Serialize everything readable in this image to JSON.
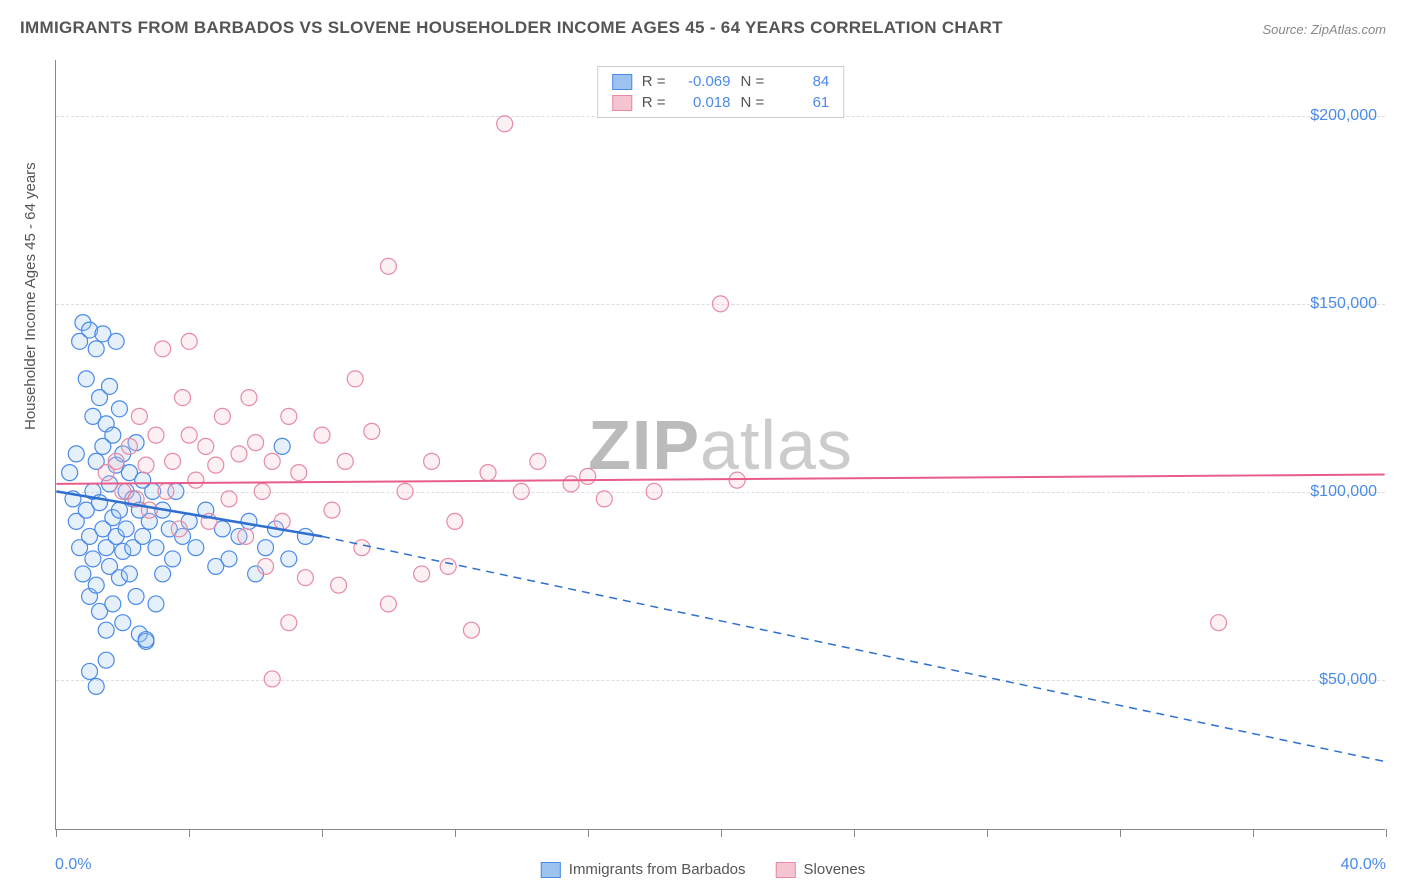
{
  "title": "IMMIGRANTS FROM BARBADOS VS SLOVENE HOUSEHOLDER INCOME AGES 45 - 64 YEARS CORRELATION CHART",
  "source": "Source: ZipAtlas.com",
  "ylabel": "Householder Income Ages 45 - 64 years",
  "watermark_bold": "ZIP",
  "watermark_rest": "atlas",
  "chart": {
    "type": "scatter",
    "background_color": "#ffffff",
    "grid_color": "#dddddd",
    "axis_color": "#888888",
    "label_color": "#555555",
    "tick_label_color": "#4a8ae8",
    "label_fontsize": 15,
    "tick_fontsize": 16,
    "title_fontsize": 17,
    "xlim": [
      0,
      40
    ],
    "ylim": [
      10000,
      215000
    ],
    "x_tick_positions": [
      0,
      4,
      8,
      12,
      16,
      20,
      24,
      28,
      32,
      36,
      40
    ],
    "x_min_label": "0.0%",
    "x_max_label": "40.0%",
    "y_grid": [
      {
        "value": 50000,
        "label": "$50,000"
      },
      {
        "value": 100000,
        "label": "$100,000"
      },
      {
        "value": 150000,
        "label": "$150,000"
      },
      {
        "value": 200000,
        "label": "$200,000"
      }
    ],
    "marker_radius": 8,
    "series": [
      {
        "name": "Immigrants from Barbados",
        "fill": "#9cc3ef",
        "stroke": "#4a8ae8",
        "r_value": "-0.069",
        "n_value": "84",
        "trend": {
          "solid_from": [
            0,
            100000
          ],
          "solid_to": [
            8,
            88000
          ],
          "dashed_to": [
            40,
            28000
          ],
          "color": "#2e6fd1",
          "width": 2.5
        },
        "points": [
          [
            0.4,
            105000
          ],
          [
            0.5,
            98000
          ],
          [
            0.6,
            110000
          ],
          [
            0.6,
            92000
          ],
          [
            0.7,
            140000
          ],
          [
            0.7,
            85000
          ],
          [
            0.8,
            145000
          ],
          [
            0.8,
            78000
          ],
          [
            0.9,
            130000
          ],
          [
            0.9,
            95000
          ],
          [
            1.0,
            143000
          ],
          [
            1.0,
            88000
          ],
          [
            1.0,
            72000
          ],
          [
            1.1,
            120000
          ],
          [
            1.1,
            100000
          ],
          [
            1.1,
            82000
          ],
          [
            1.2,
            138000
          ],
          [
            1.2,
            108000
          ],
          [
            1.2,
            75000
          ],
          [
            1.3,
            125000
          ],
          [
            1.3,
            97000
          ],
          [
            1.3,
            68000
          ],
          [
            1.4,
            142000
          ],
          [
            1.4,
            112000
          ],
          [
            1.4,
            90000
          ],
          [
            1.5,
            118000
          ],
          [
            1.5,
            85000
          ],
          [
            1.5,
            63000
          ],
          [
            1.6,
            128000
          ],
          [
            1.6,
            102000
          ],
          [
            1.6,
            80000
          ],
          [
            1.7,
            115000
          ],
          [
            1.7,
            93000
          ],
          [
            1.7,
            70000
          ],
          [
            1.8,
            107000
          ],
          [
            1.8,
            88000
          ],
          [
            1.9,
            122000
          ],
          [
            1.9,
            95000
          ],
          [
            1.9,
            77000
          ],
          [
            2.0,
            110000
          ],
          [
            2.0,
            84000
          ],
          [
            2.0,
            65000
          ],
          [
            2.1,
            100000
          ],
          [
            2.1,
            90000
          ],
          [
            2.2,
            105000
          ],
          [
            2.2,
            78000
          ],
          [
            2.3,
            98000
          ],
          [
            2.3,
            85000
          ],
          [
            2.4,
            113000
          ],
          [
            2.4,
            72000
          ],
          [
            2.5,
            95000
          ],
          [
            2.5,
            62000
          ],
          [
            2.6,
            103000
          ],
          [
            2.6,
            88000
          ],
          [
            2.7,
            60000
          ],
          [
            2.7,
            60500
          ],
          [
            2.8,
            92000
          ],
          [
            2.9,
            100000
          ],
          [
            3.0,
            85000
          ],
          [
            3.0,
            70000
          ],
          [
            3.2,
            95000
          ],
          [
            3.2,
            78000
          ],
          [
            3.4,
            90000
          ],
          [
            3.5,
            82000
          ],
          [
            3.6,
            100000
          ],
          [
            3.8,
            88000
          ],
          [
            4.0,
            92000
          ],
          [
            4.2,
            85000
          ],
          [
            4.5,
            95000
          ],
          [
            4.8,
            80000
          ],
          [
            5.0,
            90000
          ],
          [
            5.2,
            82000
          ],
          [
            5.5,
            88000
          ],
          [
            5.8,
            92000
          ],
          [
            6.0,
            78000
          ],
          [
            6.3,
            85000
          ],
          [
            6.6,
            90000
          ],
          [
            6.8,
            112000
          ],
          [
            7.0,
            82000
          ],
          [
            7.5,
            88000
          ],
          [
            1.0,
            52000
          ],
          [
            1.2,
            48000
          ],
          [
            1.5,
            55000
          ],
          [
            1.8,
            140000
          ]
        ]
      },
      {
        "name": "Slovenes",
        "fill": "#f5c4d1",
        "stroke": "#e88aa5",
        "r_value": "0.018",
        "n_value": "61",
        "trend": {
          "solid_from": [
            0,
            102000
          ],
          "solid_to": [
            40,
            104500
          ],
          "dashed_to": null,
          "color": "#e85d8a",
          "width": 2
        },
        "points": [
          [
            1.5,
            105000
          ],
          [
            1.8,
            108000
          ],
          [
            2.0,
            100000
          ],
          [
            2.2,
            112000
          ],
          [
            2.4,
            98000
          ],
          [
            2.5,
            120000
          ],
          [
            2.7,
            107000
          ],
          [
            2.8,
            95000
          ],
          [
            3.0,
            115000
          ],
          [
            3.2,
            138000
          ],
          [
            3.3,
            100000
          ],
          [
            3.5,
            108000
          ],
          [
            3.7,
            90000
          ],
          [
            3.8,
            125000
          ],
          [
            4.0,
            115000
          ],
          [
            4.2,
            103000
          ],
          [
            4.5,
            112000
          ],
          [
            4.6,
            92000
          ],
          [
            4.8,
            107000
          ],
          [
            5.0,
            120000
          ],
          [
            5.2,
            98000
          ],
          [
            5.5,
            110000
          ],
          [
            5.7,
            88000
          ],
          [
            5.8,
            125000
          ],
          [
            6.0,
            113000
          ],
          [
            6.2,
            100000
          ],
          [
            6.3,
            80000
          ],
          [
            6.5,
            108000
          ],
          [
            6.8,
            92000
          ],
          [
            7.0,
            120000
          ],
          [
            7.3,
            105000
          ],
          [
            7.5,
            77000
          ],
          [
            8.0,
            115000
          ],
          [
            8.3,
            95000
          ],
          [
            8.7,
            108000
          ],
          [
            9.0,
            130000
          ],
          [
            9.2,
            85000
          ],
          [
            9.5,
            116000
          ],
          [
            10.0,
            160000
          ],
          [
            10.0,
            70000
          ],
          [
            10.5,
            100000
          ],
          [
            11.0,
            78000
          ],
          [
            11.3,
            108000
          ],
          [
            11.8,
            80000
          ],
          [
            12.5,
            63000
          ],
          [
            13.0,
            105000
          ],
          [
            13.5,
            198000
          ],
          [
            14.0,
            100000
          ],
          [
            14.5,
            108000
          ],
          [
            15.5,
            102000
          ],
          [
            16.0,
            104000
          ],
          [
            16.5,
            98000
          ],
          [
            18.0,
            100000
          ],
          [
            20.0,
            150000
          ],
          [
            20.5,
            103000
          ],
          [
            6.5,
            50000
          ],
          [
            7.0,
            65000
          ],
          [
            35.0,
            65000
          ],
          [
            4.0,
            140000
          ],
          [
            8.5,
            75000
          ],
          [
            12.0,
            92000
          ]
        ]
      }
    ]
  },
  "legend_top": {
    "r_label": "R =",
    "n_label": "N ="
  },
  "legend_bottom": {
    "series1": "Immigrants from Barbados",
    "series2": "Slovenes"
  }
}
